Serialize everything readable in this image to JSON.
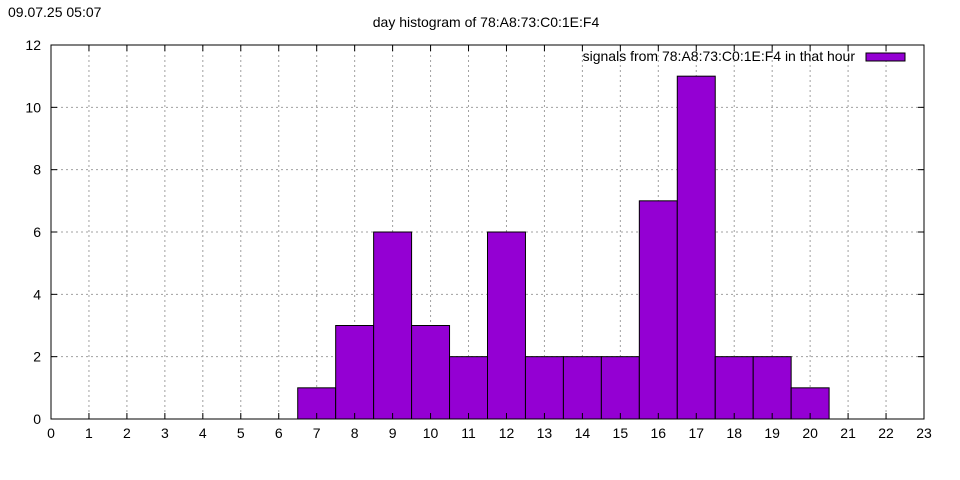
{
  "timestamp": "09.07.25 05:07",
  "chart_data": {
    "type": "bar",
    "title": "day histogram of 78:A8:73:C0:1E:F4",
    "xlabel": "",
    "ylabel": "",
    "xlim": [
      0,
      23
    ],
    "ylim": [
      0,
      12
    ],
    "x_ticks": [
      0,
      1,
      2,
      3,
      4,
      5,
      6,
      7,
      8,
      9,
      10,
      11,
      12,
      13,
      14,
      15,
      16,
      17,
      18,
      19,
      20,
      21,
      22,
      23
    ],
    "y_ticks": [
      0,
      2,
      4,
      6,
      8,
      10,
      12
    ],
    "grid": true,
    "legend_position": "top-right",
    "bar_color": "#9400d3",
    "series": [
      {
        "name": "signals from 78:A8:73:C0:1E:F4 in that hour",
        "x": [
          7,
          8,
          9,
          10,
          11,
          12,
          13,
          14,
          15,
          16,
          17,
          18,
          19,
          20
        ],
        "values": [
          1,
          3,
          6,
          3,
          2,
          6,
          2,
          2,
          2,
          7,
          11,
          2,
          2,
          1
        ]
      }
    ]
  }
}
